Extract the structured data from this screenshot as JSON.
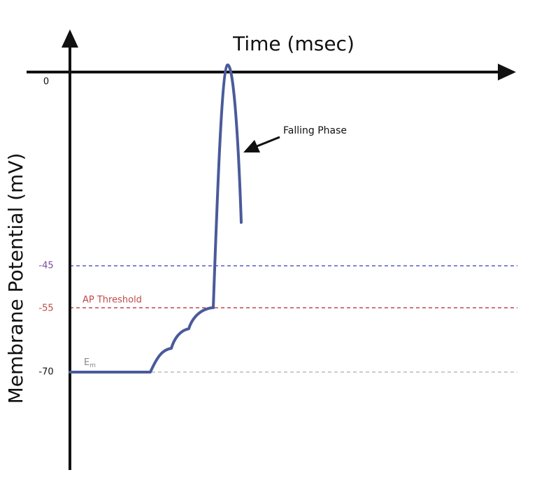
{
  "axes": {
    "x_label": "Time (msec)",
    "y_label": "Membrane Potential  (mV)",
    "ticks": [
      "0",
      "-45",
      "-55",
      "-70"
    ]
  },
  "annotations": {
    "threshold": "AP Threshold",
    "resting": "E",
    "resting_sub": "m",
    "falling": "Falling Phase"
  }
}
